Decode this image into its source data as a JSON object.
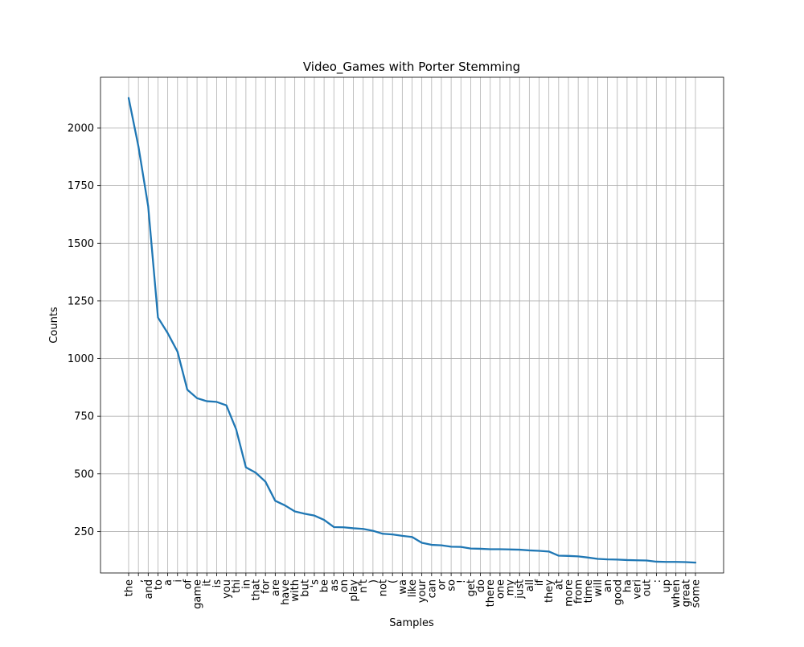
{
  "chart_data": {
    "type": "line",
    "title": "Video_Games with Porter Stemming",
    "xlabel": "Samples",
    "ylabel": "Counts",
    "ylim": [
      70,
      2220
    ],
    "yticks": [
      250,
      500,
      750,
      1000,
      1250,
      1500,
      1750,
      2000
    ],
    "grid": true,
    "line_color": "#1f77b4",
    "categories": [
      "the",
      ",",
      "and",
      "to",
      "a",
      "i",
      "of",
      "game",
      "it",
      "is",
      "you",
      "thi",
      "in",
      "that",
      "for",
      "are",
      "have",
      "with",
      "but",
      "'s",
      "be",
      "as",
      "on",
      "play",
      "n't",
      ")",
      "not",
      "(",
      "wa",
      "like",
      "your",
      "can",
      "or",
      "so",
      "!",
      "get",
      "do",
      "there",
      "one",
      "my",
      "just",
      "all",
      "if",
      "they",
      "at",
      "more",
      "from",
      "time",
      "will",
      "an",
      "good",
      "ha",
      "veri",
      "out",
      ":",
      "up",
      "when",
      "great",
      "some"
    ],
    "values": [
      2130,
      1920,
      1660,
      1178,
      1110,
      1030,
      865,
      828,
      815,
      812,
      797,
      693,
      528,
      505,
      466,
      383,
      363,
      337,
      327,
      319,
      300,
      269,
      268,
      264,
      261,
      253,
      240,
      237,
      231,
      226,
      201,
      192,
      190,
      184,
      183,
      176,
      175,
      173,
      173,
      172,
      171,
      168,
      166,
      163,
      145,
      144,
      142,
      137,
      131,
      129,
      128,
      126,
      125,
      124,
      119,
      118,
      118,
      117,
      115
    ]
  }
}
